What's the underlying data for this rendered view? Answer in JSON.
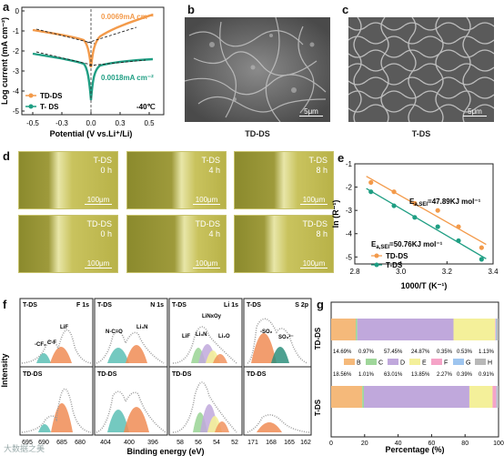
{
  "panels": {
    "a": "a",
    "b": "b",
    "c": "c",
    "d": "d",
    "e": "e",
    "f": "f",
    "g": "g"
  },
  "panel_a": {
    "ylabel": "Log current (mA cm⁻²)",
    "xlabel": "Potential (V vs.Li⁺/Li)",
    "xticks": [
      "-0.5",
      "-0.3",
      "0.0",
      "0.3",
      "0.5"
    ],
    "yticks": [
      "0",
      "-1",
      "-2",
      "-3",
      "-4",
      "-5"
    ],
    "ann_td": "0.0069mA cm⁻²",
    "ann_t": "0.0018mA cm⁻²",
    "legend_td": "TD-DS",
    "legend_t": "T- DS",
    "temp": "-40℃",
    "colors": {
      "td": "#f39a4a",
      "t": "#1f9e83"
    }
  },
  "panel_b": {
    "label": "TD-DS",
    "scale": "5μm"
  },
  "panel_c": {
    "label": "T-DS",
    "scale": "5μm"
  },
  "panel_d": {
    "top": [
      {
        "sample": "T-DS",
        "time": "0 h"
      },
      {
        "sample": "T-DS",
        "time": "4 h"
      },
      {
        "sample": "T-DS",
        "time": "8 h"
      }
    ],
    "bottom": [
      {
        "sample": "TD-DS",
        "time": "0 h"
      },
      {
        "sample": "TD-DS",
        "time": "4 h"
      },
      {
        "sample": "TD-DS",
        "time": "8 h"
      }
    ],
    "scale": "100μm"
  },
  "panel_e": {
    "ylabel": "ln (R⁻¹)",
    "xlabel": "1000/T (K⁻¹)",
    "ea_td": "E",
    "ea_td_sub": "a,SEI",
    "ea_td_val": "=47.89KJ mol⁻¹",
    "ea_t": "E",
    "ea_t_sub": "a,SEI",
    "ea_t_val": "=50.76KJ mol⁻¹",
    "legend_td": "TD-DS",
    "legend_t": "T-DS",
    "xticks": [
      "2.8",
      "3.0",
      "3.2",
      "3.4"
    ],
    "yticks": [
      "-1",
      "-2",
      "-3",
      "-4",
      "-5"
    ]
  },
  "chart_data": {
    "type": "scatter",
    "xlabel": "1000/T (K⁻¹)",
    "ylabel": "ln (R⁻¹)",
    "xlim": [
      2.8,
      3.4
    ],
    "ylim": [
      -5.3,
      -1.0
    ],
    "series": [
      {
        "name": "TD-DS",
        "color": "#f39a4a",
        "x": [
          2.87,
          2.97,
          3.06,
          3.16,
          3.25,
          3.35
        ],
        "y": [
          -1.8,
          -2.2,
          -2.7,
          -3.0,
          -3.7,
          -4.6
        ]
      },
      {
        "name": "T-DS",
        "color": "#1f9e83",
        "x": [
          2.87,
          2.97,
          3.06,
          3.16,
          3.25,
          3.35
        ],
        "y": [
          -2.2,
          -2.8,
          -3.3,
          -3.7,
          -4.3,
          -5.1
        ]
      }
    ]
  },
  "panel_f": {
    "ylabel": "Intensity",
    "xlabel": "Binding energy (eV)",
    "top_sample": "T-DS",
    "bottom_sample": "TD-DS",
    "columns": [
      {
        "title": "F 1s",
        "peaks": [
          "-CF₂",
          "C-F",
          "LiF"
        ],
        "ticks": [
          "695",
          "690",
          "685",
          "680"
        ]
      },
      {
        "title": "N 1s",
        "peaks": [
          "N-C=O",
          "Li₃N"
        ],
        "ticks": [
          "404",
          "400",
          "396"
        ]
      },
      {
        "title": "Li 1s",
        "peaks": [
          "LiNxOy",
          "LiF",
          "Li₃N",
          "Li₂O"
        ],
        "ticks": [
          "58",
          "56",
          "54",
          "52"
        ]
      },
      {
        "title": "S 2p",
        "peaks": [
          "-SO₂",
          "SO₃²⁻"
        ],
        "ticks": [
          "171",
          "168",
          "165",
          "162"
        ]
      }
    ]
  },
  "panel_g": {
    "xlabel": "Percentage (%)",
    "xticks": [
      "0",
      "20",
      "40",
      "60",
      "80",
      "100"
    ],
    "rows": [
      {
        "name": "TD-DS",
        "values": [
          14.69,
          0.97,
          57.45,
          24.87,
          0.35,
          0.53,
          1.13
        ],
        "labels": [
          "14.69%",
          "0.97%",
          "57.45%",
          "24.87%",
          "0.35%",
          "0.53%",
          "1.13%"
        ]
      },
      {
        "name": "T-DS",
        "values": [
          18.56,
          1.01,
          63.01,
          13.85,
          2.27,
          0.39,
          0.91
        ],
        "labels": [
          "18.56%",
          "1.01%",
          "63.01%",
          "13.85%",
          "2.27%",
          "0.39%",
          "0.91%"
        ]
      }
    ],
    "legend": [
      {
        "key": "B",
        "color": "#f5b97a"
      },
      {
        "key": "C",
        "color": "#9fd69a"
      },
      {
        "key": "D",
        "color": "#c0a8dc"
      },
      {
        "key": "E",
        "color": "#f4f09a"
      },
      {
        "key": "F",
        "color": "#f5a3c7"
      },
      {
        "key": "G",
        "color": "#9ec5ef"
      },
      {
        "key": "H",
        "color": "#b8b8b8"
      }
    ]
  },
  "watermark": "大数据之美"
}
